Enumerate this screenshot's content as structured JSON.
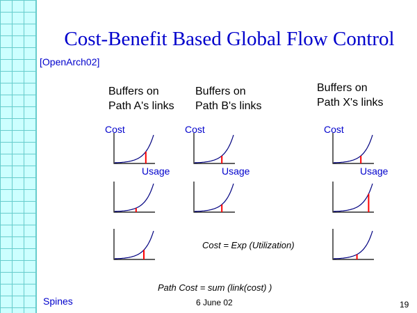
{
  "slide": {
    "title": "Cost-Benefit Based Global Flow Control",
    "reference": "[OpenArch02]",
    "columns": [
      {
        "line1": "Buffers on",
        "line2": "Path A's links"
      },
      {
        "line1": "Buffers on",
        "line2": "Path B's links"
      },
      {
        "line1": "Buffers on",
        "line2": "Path X's links"
      }
    ],
    "axis_labels": {
      "y": "Cost",
      "x": "Usage"
    },
    "cost_formula": "Cost = Exp (Utilization)",
    "path_cost_formula": "Path Cost = sum (link(cost) )",
    "footer": {
      "left": "Spines",
      "center": "6 June 02",
      "page_number": "19"
    }
  },
  "colors": {
    "grid_bg": "#ccffff",
    "grid_line": "#66cccc",
    "title": "#0000cc",
    "curve": "#000080",
    "usage_marker": "#ff0000"
  },
  "chart_data": {
    "type": "line",
    "description_series": "cost = exp(utilization)",
    "grid": [
      {
        "column": "Path A",
        "row": 1,
        "usage": 0.8
      },
      {
        "column": "Path A",
        "row": 2,
        "usage": 0.55
      },
      {
        "column": "Path A",
        "row": 3,
        "usage": 0.75
      },
      {
        "column": "Path B",
        "row": 1,
        "usage": 0.7
      },
      {
        "column": "Path B",
        "row": 2,
        "usage": 0.7
      },
      {
        "column": "Path X",
        "row": 1,
        "usage": 0.7
      },
      {
        "column": "Path X",
        "row": 2,
        "usage": 0.9
      },
      {
        "column": "Path X",
        "row": 3,
        "usage": 0.6
      }
    ]
  }
}
